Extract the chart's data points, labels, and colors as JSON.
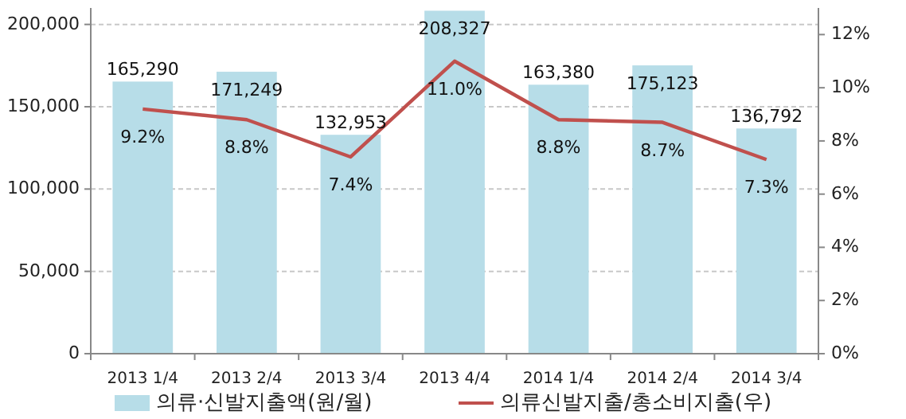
{
  "chart_data": {
    "type": "bar",
    "categories": [
      "2013 1/4",
      "2013 2/4",
      "2013 3/4",
      "2013 4/4",
      "2014 1/4",
      "2014 2/4",
      "2014 3/4"
    ],
    "series": [
      {
        "name": "의류·신발지출액(원/월)",
        "color": "#b7dde8",
        "values": [
          165290,
          171249,
          132953,
          208327,
          163380,
          175123,
          136792
        ],
        "value_labels": [
          "165,290",
          "171,249",
          "132,953",
          "208,327",
          "163,380",
          "175,123",
          "136,792"
        ]
      },
      {
        "name": "의류신발지출/총소비지출(우)",
        "type": "line",
        "axis": "y2",
        "color": "#c0504d",
        "values": [
          9.2,
          8.8,
          7.4,
          11.0,
          8.8,
          8.7,
          7.3
        ],
        "value_labels": [
          "9.2%",
          "8.8%",
          "7.4%",
          "11.0%",
          "8.8%",
          "8.7%",
          "7.3%"
        ]
      }
    ],
    "ylim": [
      0,
      210000
    ],
    "yticks": [
      {
        "value": 0,
        "label": "0"
      },
      {
        "value": 50000,
        "label": "50,000"
      },
      {
        "value": 100000,
        "label": "100,000"
      },
      {
        "value": 150000,
        "label": "150,000"
      },
      {
        "value": 200000,
        "label": "200,000"
      }
    ],
    "y2lim": [
      0,
      13
    ],
    "y2ticks": [
      {
        "value": 0,
        "label": "0%"
      },
      {
        "value": 2,
        "label": "2%"
      },
      {
        "value": 4,
        "label": "4%"
      },
      {
        "value": 6,
        "label": "6%"
      },
      {
        "value": 8,
        "label": "8%"
      },
      {
        "value": 10,
        "label": "10%"
      },
      {
        "value": 12,
        "label": "12%"
      }
    ],
    "grid": "y",
    "legend": "bottom",
    "marker": "none",
    "line_style": "solid"
  }
}
